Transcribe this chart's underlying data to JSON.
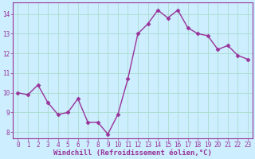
{
  "x": [
    0,
    1,
    2,
    3,
    4,
    5,
    6,
    7,
    8,
    9,
    10,
    11,
    12,
    13,
    14,
    15,
    16,
    17,
    18,
    19,
    20,
    21,
    22,
    23
  ],
  "y": [
    10.0,
    9.9,
    10.4,
    9.5,
    8.9,
    9.0,
    9.7,
    8.5,
    8.5,
    7.9,
    8.9,
    10.7,
    13.0,
    13.5,
    14.2,
    13.8,
    14.2,
    13.3,
    13.0,
    12.9,
    12.2,
    12.4,
    11.9,
    11.7
  ],
  "line_color": "#993399",
  "marker": "D",
  "marker_size": 2.5,
  "linewidth": 1.0,
  "bg_color": "#cceeff",
  "grid_color": "#aaddcc",
  "xlabel": "Windchill (Refroidissement éolien,°C)",
  "tick_color": "#993399",
  "ylim": [
    7.7,
    14.6
  ],
  "xlim": [
    -0.5,
    23.5
  ],
  "yticks": [
    8,
    9,
    10,
    11,
    12,
    13,
    14
  ],
  "xticks": [
    0,
    1,
    2,
    3,
    4,
    5,
    6,
    7,
    8,
    9,
    10,
    11,
    12,
    13,
    14,
    15,
    16,
    17,
    18,
    19,
    20,
    21,
    22,
    23
  ],
  "tick_fontsize": 5.5,
  "xlabel_fontsize": 6.5
}
